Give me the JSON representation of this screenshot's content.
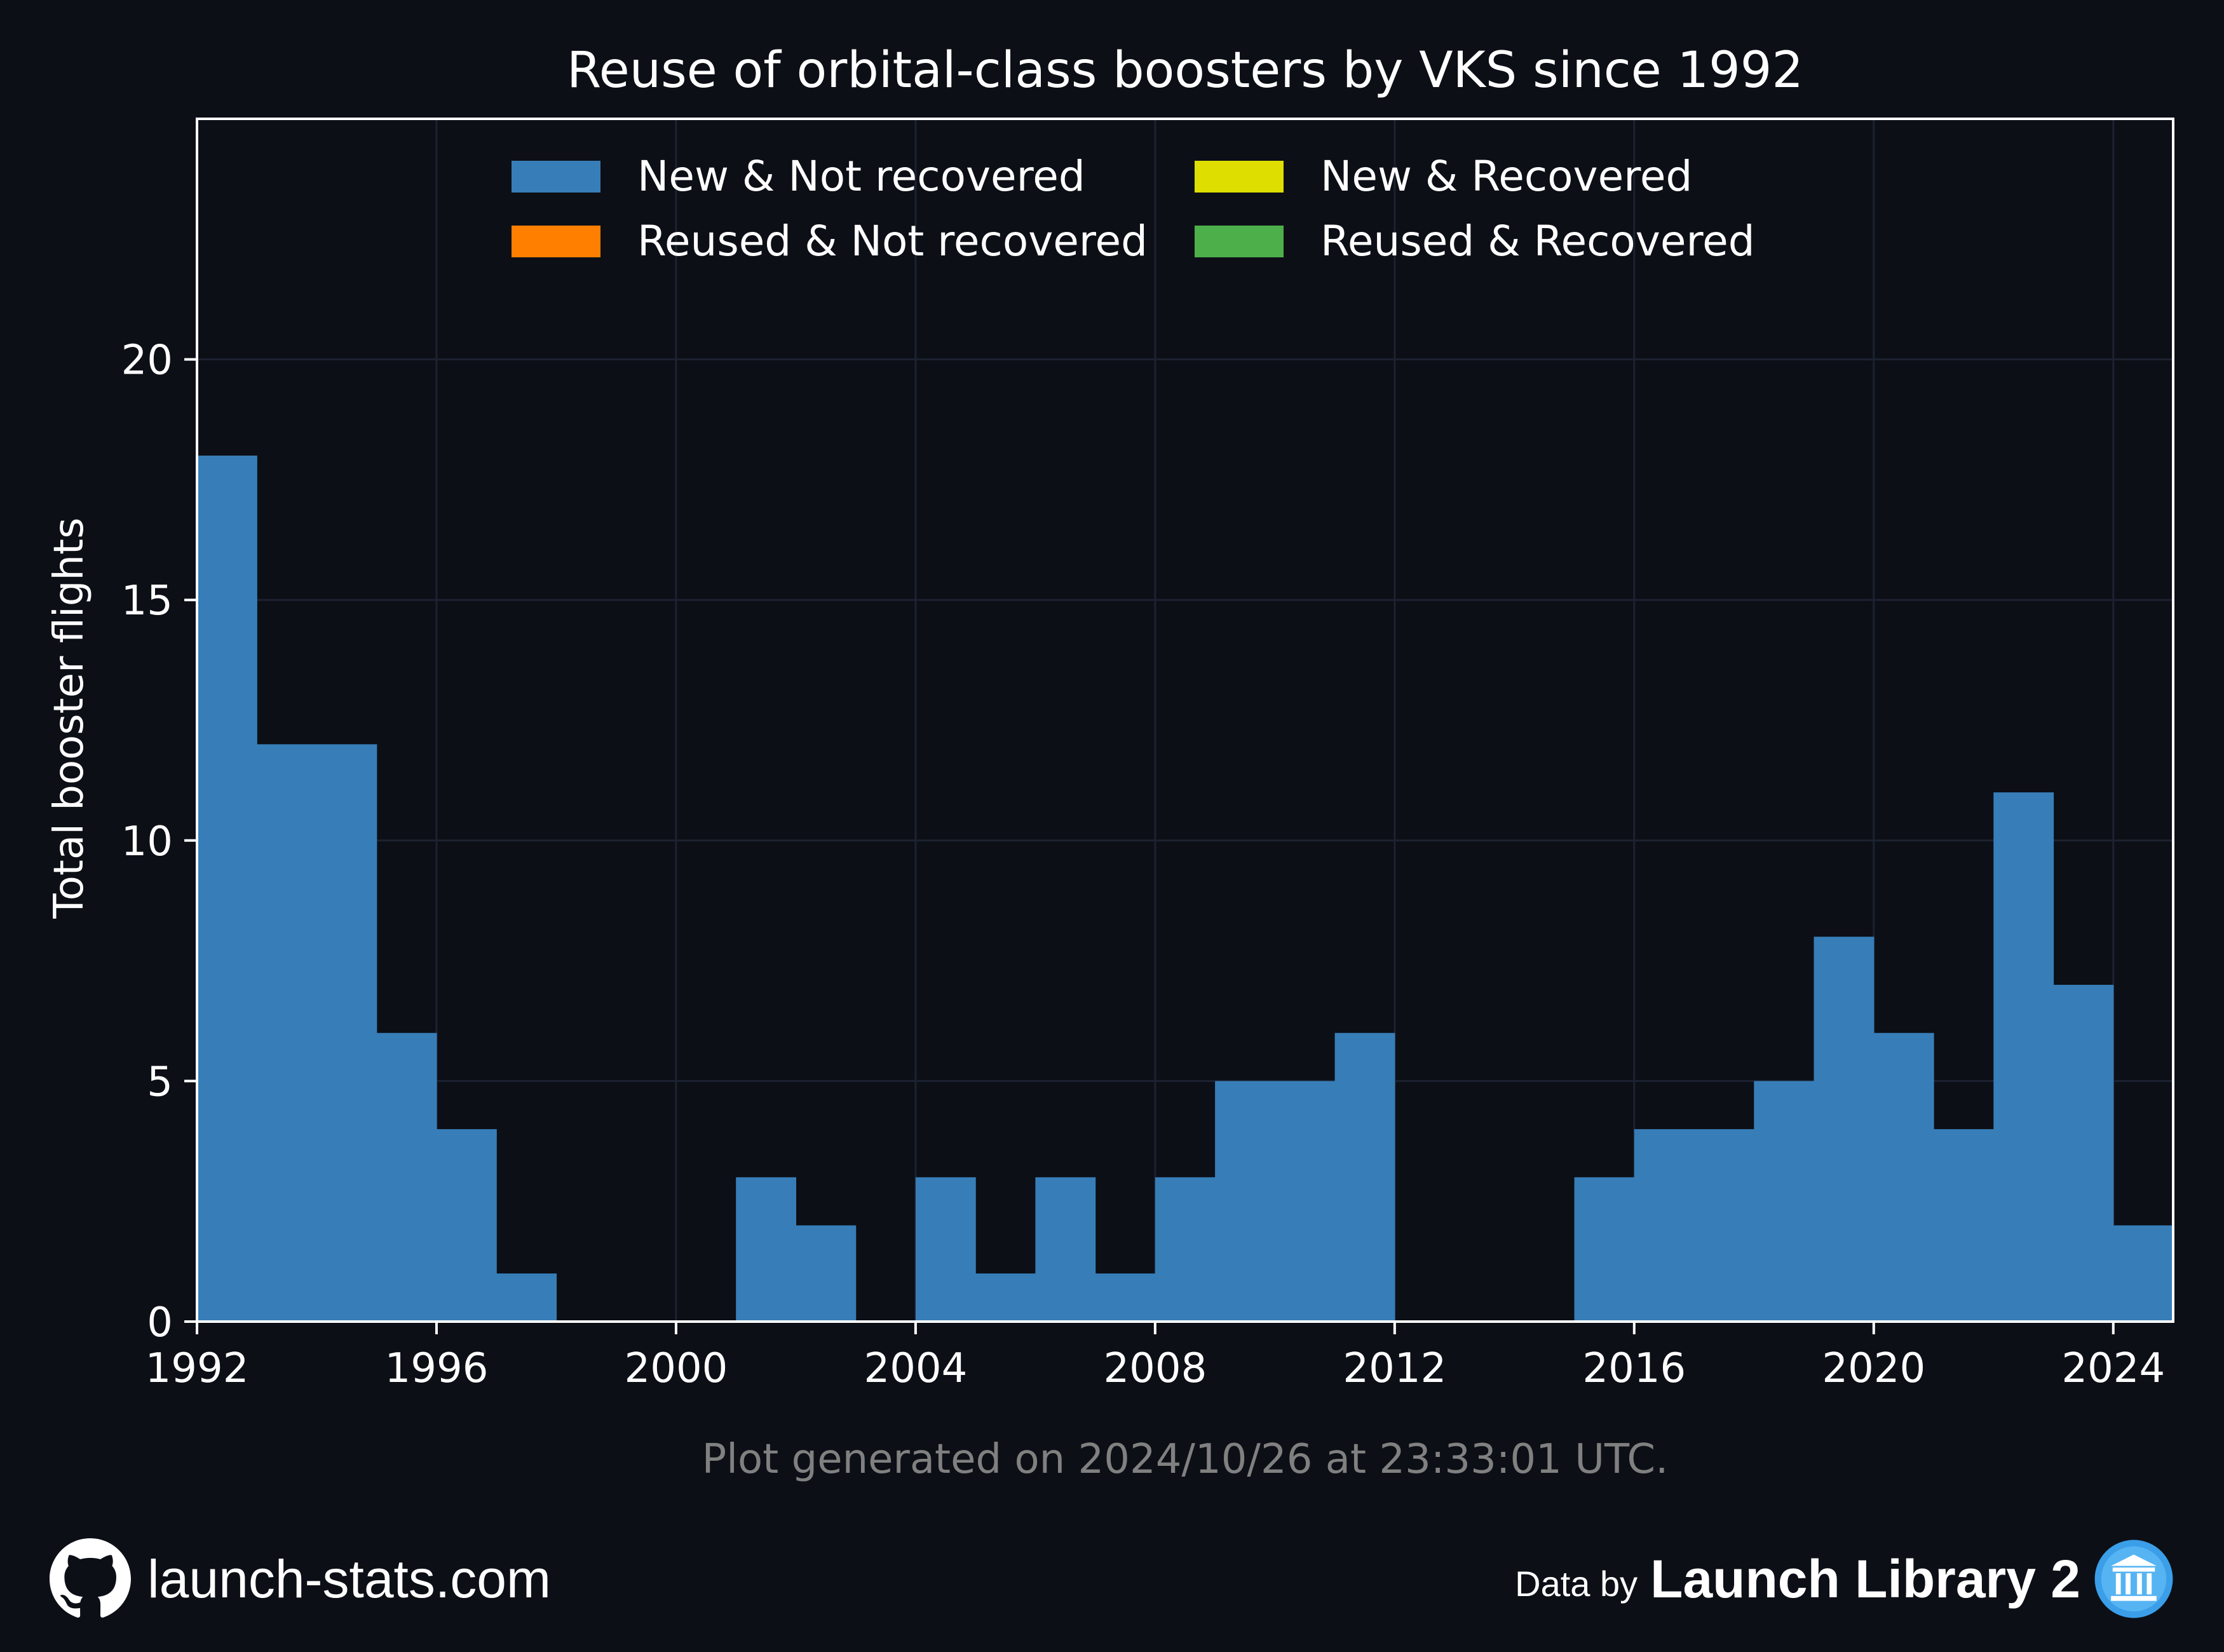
{
  "chart_data": {
    "type": "bar",
    "title": "Reuse of orbital-class boosters by VKS since 1992",
    "ylabel": "Total booster flights",
    "xlabel": "",
    "xlim": [
      1992,
      2025
    ],
    "ylim": [
      0,
      25
    ],
    "xticks": [
      "1992",
      "1996",
      "2000",
      "2004",
      "2008",
      "2012",
      "2016",
      "2020",
      "2024"
    ],
    "yticks": [
      "0",
      "5",
      "10",
      "15",
      "20"
    ],
    "grid": true,
    "legend_position": "top-center",
    "stacked": true,
    "categories": [
      1992,
      1993,
      1994,
      1995,
      1996,
      1997,
      1998,
      1999,
      2000,
      2001,
      2002,
      2003,
      2004,
      2005,
      2006,
      2007,
      2008,
      2009,
      2010,
      2011,
      2012,
      2013,
      2014,
      2015,
      2016,
      2017,
      2018,
      2019,
      2020,
      2021,
      2022,
      2023,
      2024
    ],
    "series": [
      {
        "name": "New & Not recovered",
        "color": "#377eb8",
        "values": [
          18,
          12,
          12,
          6,
          4,
          1,
          0,
          0,
          0,
          3,
          2,
          0,
          3,
          1,
          3,
          1,
          3,
          5,
          5,
          6,
          0,
          0,
          0,
          3,
          4,
          4,
          5,
          8,
          6,
          4,
          11,
          7,
          2
        ]
      },
      {
        "name": "Reused & Not recovered",
        "color": "#ff7f00",
        "values": [
          0,
          0,
          0,
          0,
          0,
          0,
          0,
          0,
          0,
          0,
          0,
          0,
          0,
          0,
          0,
          0,
          0,
          0,
          0,
          0,
          0,
          0,
          0,
          0,
          0,
          0,
          0,
          0,
          0,
          0,
          0,
          0,
          0
        ]
      },
      {
        "name": "New & Recovered",
        "color": "#dede00",
        "values": [
          0,
          0,
          0,
          0,
          0,
          0,
          0,
          0,
          0,
          0,
          0,
          0,
          0,
          0,
          0,
          0,
          0,
          0,
          0,
          0,
          0,
          0,
          0,
          0,
          0,
          0,
          0,
          0,
          0,
          0,
          0,
          0,
          0
        ]
      },
      {
        "name": "Reused & Recovered",
        "color": "#4daf4a",
        "values": [
          0,
          0,
          0,
          0,
          0,
          0,
          0,
          0,
          0,
          0,
          0,
          0,
          0,
          0,
          0,
          0,
          0,
          0,
          0,
          0,
          0,
          0,
          0,
          0,
          0,
          0,
          0,
          0,
          0,
          0,
          0,
          0,
          0
        ]
      }
    ]
  },
  "footnote": "Plot generated on 2024/10/26 at 23:33:01 UTC.",
  "footer": {
    "site": "launch-stats.com",
    "data_by": "Data by",
    "library": "Launch Library 2",
    "left_icon": "github-icon",
    "right_icon": "launch-library-icon"
  },
  "colors": {
    "background": "#0c0f16",
    "grid": "#1c2230",
    "axis": "#ffffff",
    "footnote": "#808080"
  }
}
